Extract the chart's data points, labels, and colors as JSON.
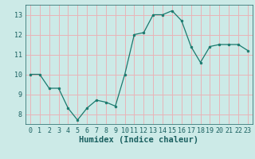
{
  "x": [
    0,
    1,
    2,
    3,
    4,
    5,
    6,
    7,
    8,
    9,
    10,
    11,
    12,
    13,
    14,
    15,
    16,
    17,
    18,
    19,
    20,
    21,
    22,
    23
  ],
  "y": [
    10.0,
    10.0,
    9.3,
    9.3,
    8.3,
    7.7,
    8.3,
    8.7,
    8.6,
    8.4,
    10.0,
    12.0,
    12.1,
    13.0,
    13.0,
    13.2,
    12.7,
    11.4,
    10.6,
    11.4,
    11.5,
    11.5,
    11.5,
    11.2
  ],
  "line_color": "#1a7a6e",
  "marker_color": "#1a7a6e",
  "bg_color": "#cceae7",
  "grid_color": "#e8b4b8",
  "xlabel": "Humidex (Indice chaleur)",
  "ylim": [
    7.5,
    13.5
  ],
  "xlim": [
    -0.5,
    23.5
  ],
  "yticks": [
    8,
    9,
    10,
    11,
    12,
    13
  ],
  "xticks": [
    0,
    1,
    2,
    3,
    4,
    5,
    6,
    7,
    8,
    9,
    10,
    11,
    12,
    13,
    14,
    15,
    16,
    17,
    18,
    19,
    20,
    21,
    22,
    23
  ],
  "tick_fontsize": 6,
  "xlabel_fontsize": 7.5
}
